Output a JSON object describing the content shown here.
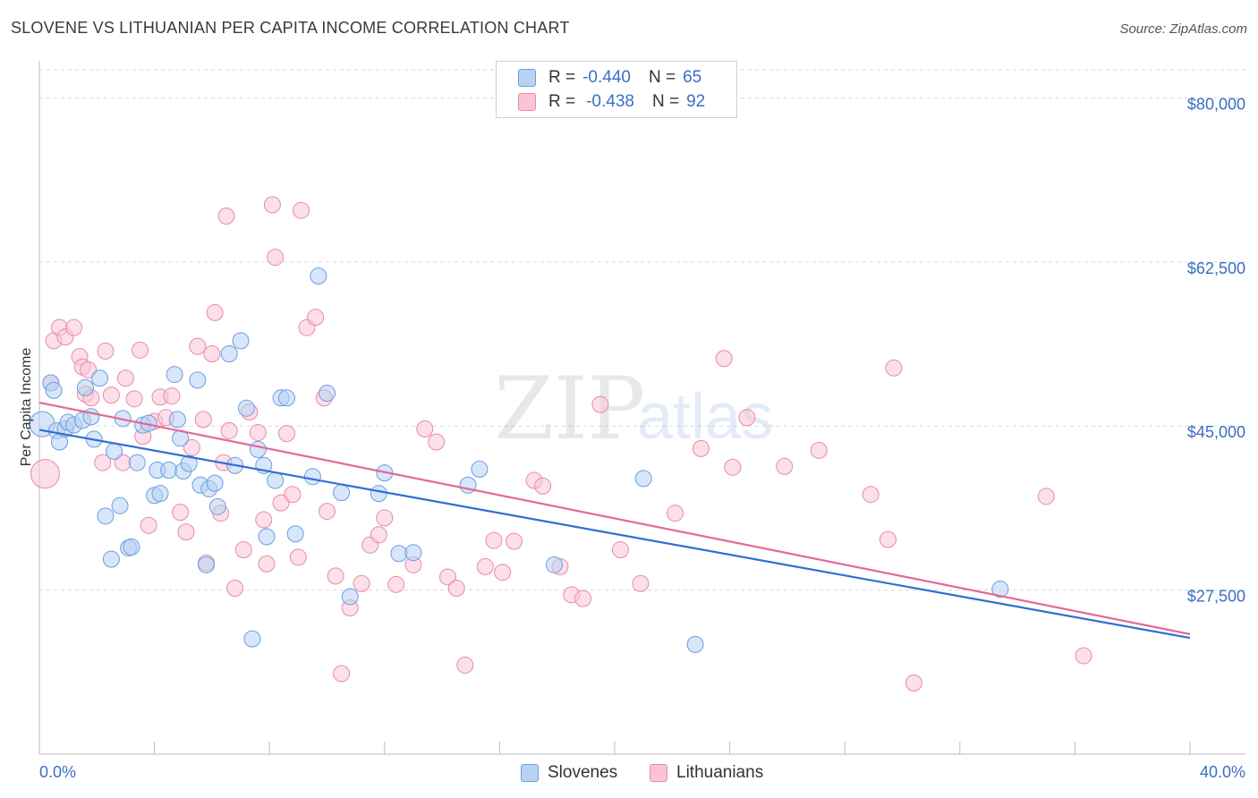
{
  "title": "SLOVENE VS LITHUANIAN PER CAPITA INCOME CORRELATION CHART",
  "source": "Source: ZipAtlas.com",
  "watermark": {
    "zip": "ZIP",
    "atlas": "atlas"
  },
  "legend": {
    "rows": [
      {
        "r_label": "R =",
        "r_value": "-0.440",
        "n_label": "N =",
        "n_value": "65"
      },
      {
        "r_label": "R =",
        "r_value": "-0.438",
        "n_label": "N =",
        "n_value": "92"
      }
    ]
  },
  "bottom_legend": {
    "series1": "Slovenes",
    "series2": "Lithuanians"
  },
  "colors": {
    "slovene_fill": "#b7d2f3",
    "slovene_stroke": "#6b9ee0",
    "slovene_line": "#2f6fd1",
    "lith_fill": "#f9c4d5",
    "lith_stroke": "#e88aa8",
    "lith_line": "#e06a94",
    "grid": "#d8d8d8",
    "axis_text": "#3a6fc4"
  },
  "chart_data": {
    "type": "scatter",
    "title": "SLOVENE VS LITHUANIAN PER CAPITA INCOME CORRELATION CHART",
    "xlabel": "",
    "ylabel": "Per Capita Income",
    "xlim": [
      0,
      40
    ],
    "ylim": [
      10000,
      83000
    ],
    "x_tick_labels": [
      "0.0%",
      "40.0%"
    ],
    "y_ticks": [
      27500,
      45000,
      62500,
      80000
    ],
    "y_tick_labels": [
      "$27,500",
      "$45,000",
      "$62,500",
      "$80,000"
    ],
    "series": [
      {
        "name": "Slovenes",
        "r": -0.44,
        "n": 65,
        "trend": {
          "x": [
            0,
            40
          ],
          "y": [
            44600,
            22400
          ]
        },
        "points": [
          [
            0.1,
            45200
          ],
          [
            0.4,
            49600
          ],
          [
            0.5,
            48800
          ],
          [
            0.6,
            44500
          ],
          [
            0.7,
            43300
          ],
          [
            0.9,
            44700
          ],
          [
            1.0,
            45400
          ],
          [
            1.2,
            45100
          ],
          [
            1.5,
            45600
          ],
          [
            1.6,
            49100
          ],
          [
            1.8,
            46000
          ],
          [
            1.9,
            43600
          ],
          [
            2.1,
            50100
          ],
          [
            2.3,
            35400
          ],
          [
            2.5,
            30800
          ],
          [
            2.6,
            42300
          ],
          [
            2.8,
            36500
          ],
          [
            2.9,
            45800
          ],
          [
            3.1,
            32000
          ],
          [
            3.2,
            32100
          ],
          [
            3.4,
            41100
          ],
          [
            3.6,
            45100
          ],
          [
            3.8,
            45300
          ],
          [
            4.0,
            37600
          ],
          [
            4.1,
            40300
          ],
          [
            4.2,
            37800
          ],
          [
            4.5,
            40300
          ],
          [
            4.7,
            50500
          ],
          [
            4.8,
            45700
          ],
          [
            4.9,
            43700
          ],
          [
            5.0,
            40200
          ],
          [
            5.2,
            41000
          ],
          [
            5.5,
            49900
          ],
          [
            5.6,
            38700
          ],
          [
            5.8,
            30200
          ],
          [
            5.9,
            38300
          ],
          [
            6.1,
            38900
          ],
          [
            6.2,
            36400
          ],
          [
            6.6,
            52700
          ],
          [
            6.8,
            40800
          ],
          [
            7.0,
            54100
          ],
          [
            7.2,
            46900
          ],
          [
            7.4,
            22300
          ],
          [
            7.6,
            42500
          ],
          [
            7.8,
            40800
          ],
          [
            7.9,
            33200
          ],
          [
            8.2,
            39200
          ],
          [
            8.4,
            48000
          ],
          [
            8.6,
            48000
          ],
          [
            8.9,
            33500
          ],
          [
            9.5,
            39600
          ],
          [
            9.7,
            61000
          ],
          [
            10.0,
            48500
          ],
          [
            10.5,
            37900
          ],
          [
            10.8,
            26800
          ],
          [
            11.8,
            37800
          ],
          [
            12.0,
            40000
          ],
          [
            12.5,
            31400
          ],
          [
            13.0,
            31500
          ],
          [
            14.9,
            38700
          ],
          [
            15.3,
            40400
          ],
          [
            17.9,
            30200
          ],
          [
            21.0,
            39400
          ],
          [
            22.8,
            21700
          ],
          [
            33.4,
            27600
          ]
        ]
      },
      {
        "name": "Lithuanians",
        "r": -0.438,
        "n": 92,
        "trend": {
          "x": [
            0,
            40
          ],
          "y": [
            47500,
            22800
          ]
        },
        "points": [
          [
            0.2,
            39900
          ],
          [
            0.4,
            49600
          ],
          [
            0.5,
            54100
          ],
          [
            0.7,
            55500
          ],
          [
            0.9,
            54500
          ],
          [
            1.2,
            55500
          ],
          [
            1.4,
            52400
          ],
          [
            1.5,
            51300
          ],
          [
            1.6,
            48400
          ],
          [
            1.7,
            51000
          ],
          [
            1.8,
            48000
          ],
          [
            2.2,
            41100
          ],
          [
            2.3,
            53000
          ],
          [
            2.5,
            48300
          ],
          [
            2.9,
            41100
          ],
          [
            3.0,
            50100
          ],
          [
            3.3,
            47900
          ],
          [
            3.5,
            53100
          ],
          [
            3.6,
            43900
          ],
          [
            3.8,
            34400
          ],
          [
            4.0,
            45500
          ],
          [
            4.2,
            48100
          ],
          [
            4.4,
            45900
          ],
          [
            4.6,
            48200
          ],
          [
            4.9,
            35800
          ],
          [
            5.1,
            33700
          ],
          [
            5.3,
            42700
          ],
          [
            5.5,
            53500
          ],
          [
            5.7,
            45700
          ],
          [
            5.8,
            30400
          ],
          [
            6.0,
            52700
          ],
          [
            6.1,
            57100
          ],
          [
            6.3,
            35700
          ],
          [
            6.4,
            41100
          ],
          [
            6.5,
            67400
          ],
          [
            6.6,
            44500
          ],
          [
            6.8,
            27700
          ],
          [
            7.1,
            31800
          ],
          [
            7.3,
            46500
          ],
          [
            7.6,
            44300
          ],
          [
            7.8,
            35000
          ],
          [
            7.9,
            30300
          ],
          [
            8.1,
            68600
          ],
          [
            8.2,
            63000
          ],
          [
            8.4,
            36800
          ],
          [
            8.6,
            44200
          ],
          [
            8.8,
            37700
          ],
          [
            9.0,
            31000
          ],
          [
            9.1,
            68000
          ],
          [
            9.3,
            55500
          ],
          [
            9.6,
            56600
          ],
          [
            9.9,
            48000
          ],
          [
            10.0,
            35900
          ],
          [
            10.3,
            29000
          ],
          [
            10.5,
            18600
          ],
          [
            10.8,
            25600
          ],
          [
            11.2,
            28200
          ],
          [
            11.5,
            32300
          ],
          [
            11.8,
            33400
          ],
          [
            12.0,
            35200
          ],
          [
            12.4,
            28100
          ],
          [
            13.0,
            30200
          ],
          [
            13.4,
            44700
          ],
          [
            13.8,
            43300
          ],
          [
            14.2,
            28900
          ],
          [
            14.5,
            27700
          ],
          [
            14.8,
            19500
          ],
          [
            15.5,
            30000
          ],
          [
            15.8,
            32800
          ],
          [
            16.1,
            29400
          ],
          [
            16.5,
            32700
          ],
          [
            17.2,
            39200
          ],
          [
            17.5,
            38600
          ],
          [
            18.1,
            30000
          ],
          [
            18.5,
            27000
          ],
          [
            18.9,
            26600
          ],
          [
            19.5,
            47300
          ],
          [
            20.2,
            31800
          ],
          [
            20.9,
            28200
          ],
          [
            22.1,
            35700
          ],
          [
            23.0,
            42600
          ],
          [
            23.8,
            52200
          ],
          [
            24.1,
            40600
          ],
          [
            24.6,
            45900
          ],
          [
            25.9,
            40700
          ],
          [
            27.1,
            42400
          ],
          [
            28.9,
            37700
          ],
          [
            29.5,
            32900
          ],
          [
            29.7,
            51200
          ],
          [
            30.4,
            17600
          ],
          [
            35.0,
            37500
          ],
          [
            36.3,
            20500
          ]
        ]
      }
    ]
  }
}
